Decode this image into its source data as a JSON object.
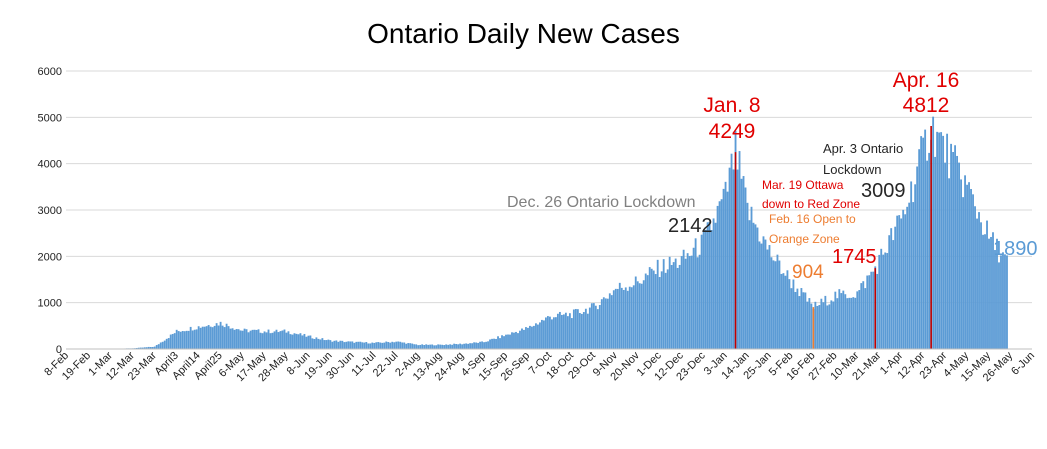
{
  "chart_data": {
    "type": "bar",
    "title": "Ontario Daily New Cases",
    "ylim": [
      0,
      6000
    ],
    "yticks": [
      0,
      1000,
      2000,
      3000,
      4000,
      5000,
      6000
    ],
    "grid": true,
    "bar_color": "#5b9bd5",
    "highlight_color": "#c00000",
    "start_date": "2020-02-08",
    "day_count": 484,
    "x_tick_labels": [
      "8-Feb",
      "19-Feb",
      "1-Mar",
      "12-Mar",
      "23-Mar",
      "April3",
      "April14",
      "April25",
      "6-May",
      "17-May",
      "28-May",
      "8-Jun",
      "19-Jun",
      "30-Jun",
      "11-Jul",
      "22-Jul",
      "2-Aug",
      "13-Aug",
      "24-Aug",
      "4-Sep",
      "15-Sep",
      "26-Sep",
      "7-Oct",
      "18-Oct",
      "29-Oct",
      "9-Nov",
      "20-Nov",
      "1-Dec",
      "12-Dec",
      "23-Dec",
      "3-Jan",
      "14-Jan",
      "25-Jan",
      "5-Feb",
      "16-Feb",
      "27-Feb",
      "10-Mar",
      "21-Mar",
      "1-Apr",
      "12-Apr",
      "23-Apr",
      "4-May",
      "15-May",
      "26-May",
      "6-Jun"
    ],
    "series_anchors": [
      [
        "2020-02-08",
        0
      ],
      [
        "2020-03-01",
        5
      ],
      [
        "2020-03-12",
        15
      ],
      [
        "2020-03-23",
        50
      ],
      [
        "2020-04-03",
        380
      ],
      [
        "2020-04-14",
        480
      ],
      [
        "2020-04-25",
        560
      ],
      [
        "2020-05-06",
        400
      ],
      [
        "2020-05-17",
        380
      ],
      [
        "2020-05-28",
        380
      ],
      [
        "2020-06-08",
        270
      ],
      [
        "2020-06-19",
        180
      ],
      [
        "2020-06-30",
        150
      ],
      [
        "2020-07-11",
        130
      ],
      [
        "2020-07-22",
        160
      ],
      [
        "2020-08-02",
        90
      ],
      [
        "2020-08-13",
        90
      ],
      [
        "2020-08-24",
        110
      ],
      [
        "2020-09-04",
        150
      ],
      [
        "2020-09-15",
        300
      ],
      [
        "2020-09-26",
        450
      ],
      [
        "2020-10-07",
        700
      ],
      [
        "2020-10-18",
        750
      ],
      [
        "2020-10-29",
        900
      ],
      [
        "2020-11-09",
        1300
      ],
      [
        "2020-11-20",
        1450
      ],
      [
        "2020-12-01",
        1750
      ],
      [
        "2020-12-12",
        1900
      ],
      [
        "2020-12-23",
        2300
      ],
      [
        "2021-01-03",
        3300
      ],
      [
        "2021-01-08",
        4249
      ],
      [
        "2021-01-14",
        3000
      ],
      [
        "2021-01-25",
        2100
      ],
      [
        "2021-02-05",
        1450
      ],
      [
        "2021-02-16",
        904
      ],
      [
        "2021-02-27",
        1150
      ],
      [
        "2021-03-10",
        1200
      ],
      [
        "2021-03-19",
        1745
      ],
      [
        "2021-04-01",
        2800
      ],
      [
        "2021-04-03",
        3009
      ],
      [
        "2021-04-16",
        4812
      ],
      [
        "2021-04-23",
        4300
      ],
      [
        "2021-05-04",
        3500
      ],
      [
        "2021-05-15",
        2400
      ],
      [
        "2021-05-24",
        1890
      ]
    ],
    "markers": [
      {
        "date": "2021-01-08",
        "value": 4249,
        "color": "#c00000"
      },
      {
        "date": "2021-02-16",
        "value": 904,
        "color": "#ed7d31"
      },
      {
        "date": "2021-03-19",
        "value": 1745,
        "color": "#c00000"
      },
      {
        "date": "2021-04-16",
        "value": 4812,
        "color": "#c00000"
      }
    ]
  },
  "annotations": {
    "jan8_label": "Jan. 8",
    "jan8_value": "4249",
    "apr16_label": "Apr. 16",
    "apr16_value": "4812",
    "dec26_text": "Dec. 26 Ontario Lockdown",
    "dec26_value": "2142",
    "apr3_line1": "Apr. 3 Ontario",
    "apr3_line2": "Lockdown",
    "apr3_value": "3009",
    "mar19_line1": "Mar. 19 Ottawa",
    "mar19_line2": "down to Red Zone",
    "feb16_line1": "Feb. 16 Open to",
    "feb16_line2": "Orange Zone",
    "feb16_value": "904",
    "mar19_value": "1745",
    "last_value": "1890"
  }
}
